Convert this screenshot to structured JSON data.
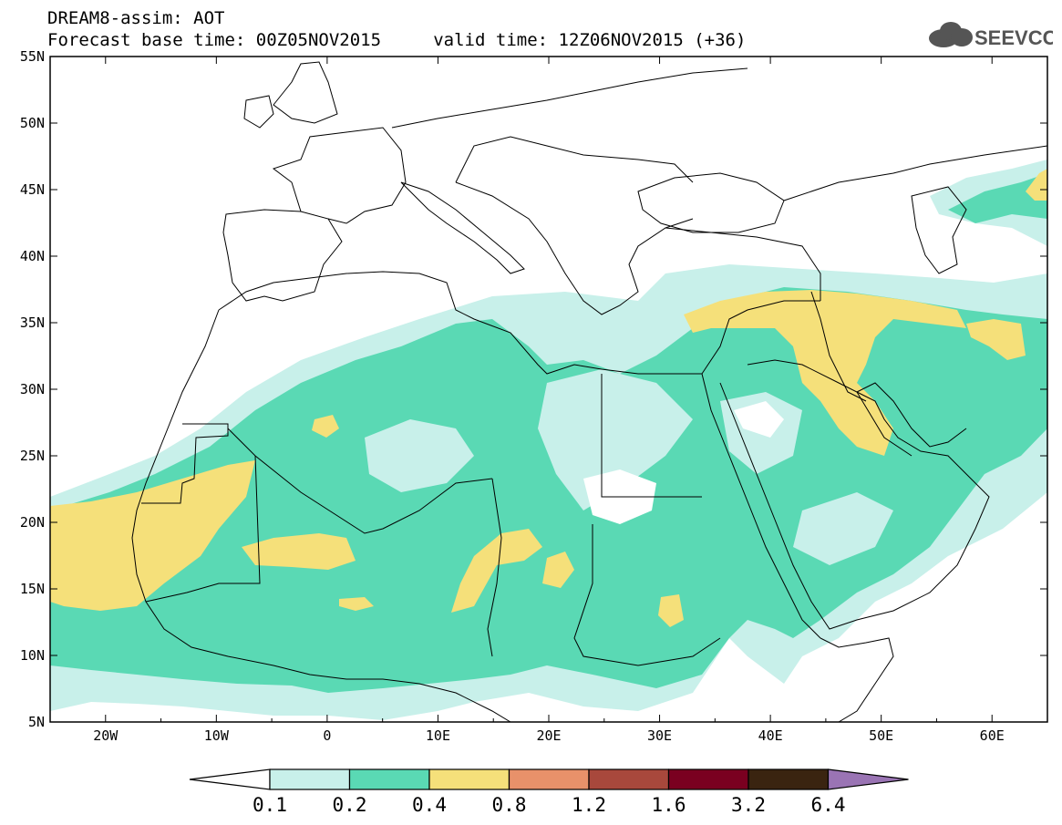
{
  "header": {
    "line1": "DREAM8-assim: AOT",
    "line2": "Forecast base time: 00Z05NOV2015     valid time: 12Z06NOV2015 (+36)"
  },
  "logo": {
    "text": "SEEVCCC",
    "icon": "cloud-icon"
  },
  "map": {
    "lon_range": [
      -25,
      65
    ],
    "lat_range": [
      5,
      55
    ],
    "lat_labels": [
      "55N",
      "50N",
      "45N",
      "40N",
      "35N",
      "30N",
      "25N",
      "20N",
      "15N",
      "10N",
      "5N"
    ],
    "lon_labels": [
      "20W",
      "10W",
      "0",
      "10E",
      "20E",
      "30E",
      "40E",
      "50E",
      "60E"
    ]
  },
  "colorbar": {
    "labels": [
      "0.1",
      "0.2",
      "0.4",
      "0.8",
      "1.2",
      "1.6",
      "3.2",
      "6.4"
    ],
    "colors": [
      "#ffffff",
      "#c8f0ea",
      "#5ad9b4",
      "#f5e07a",
      "#e8916a",
      "#a8483c",
      "#7a0020",
      "#3a2410",
      "#9a74b4"
    ]
  }
}
